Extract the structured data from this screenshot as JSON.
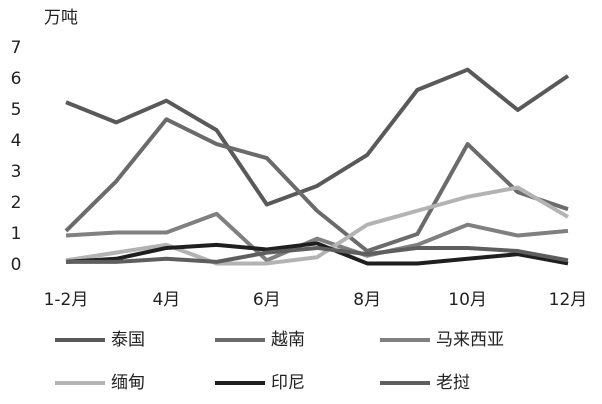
{
  "chart_data": {
    "type": "line",
    "y_label": "万吨",
    "categories": [
      "1-2月",
      null,
      "4月",
      null,
      "6月",
      null,
      "8月",
      null,
      "10月",
      null,
      "12月"
    ],
    "ylim": [
      0,
      7
    ],
    "yticks": [
      0,
      1,
      2,
      3,
      4,
      5,
      6,
      7
    ],
    "grid": false,
    "series": [
      {
        "name": "泰国",
        "color": "#595959",
        "values": [
          5.25,
          4.6,
          5.3,
          4.35,
          1.95,
          2.55,
          3.55,
          5.65,
          6.3,
          5.0,
          6.1
        ]
      },
      {
        "name": "越南",
        "color": "#6b6b6b",
        "values": [
          1.1,
          2.7,
          4.7,
          3.9,
          3.45,
          1.75,
          0.45,
          1.0,
          3.9,
          2.35,
          1.8
        ]
      },
      {
        "name": "马来西亚",
        "color": "#808080",
        "values": [
          0.95,
          1.05,
          1.05,
          1.65,
          0.15,
          0.85,
          0.3,
          0.65,
          1.3,
          0.95,
          1.1
        ]
      },
      {
        "name": "缅甸",
        "color": "#b3b3b3",
        "values": [
          0.15,
          0.4,
          0.65,
          0.05,
          0.05,
          0.25,
          1.3,
          1.75,
          2.2,
          2.5,
          1.55
        ]
      },
      {
        "name": "印尼",
        "color": "#1f1f1f",
        "values": [
          0.1,
          0.2,
          0.55,
          0.65,
          0.5,
          0.7,
          0.05,
          0.05,
          0.2,
          0.35,
          0.05
        ]
      },
      {
        "name": "老挝",
        "color": "#5e5e5e",
        "values": [
          0.1,
          0.1,
          0.2,
          0.1,
          0.4,
          0.55,
          0.35,
          0.55,
          0.55,
          0.45,
          0.15
        ]
      }
    ]
  }
}
